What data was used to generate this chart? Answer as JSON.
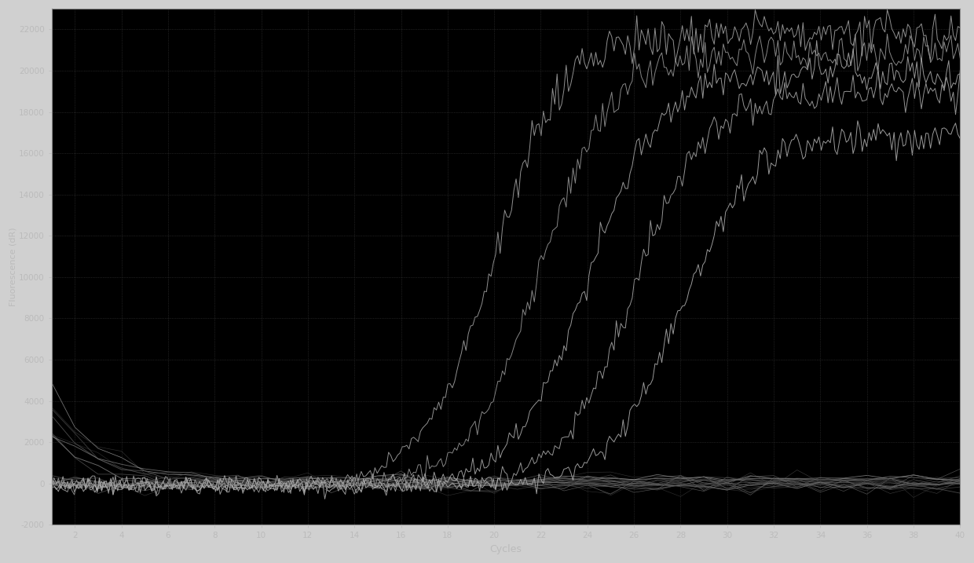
{
  "title": "",
  "xlabel": "Cycles",
  "ylabel": "Fluorescence (dR)",
  "xlim": [
    1,
    40
  ],
  "ylim": [
    -2000,
    23000
  ],
  "xticks": [
    2,
    4,
    6,
    8,
    10,
    12,
    14,
    16,
    18,
    20,
    22,
    24,
    26,
    28,
    30,
    32,
    34,
    36,
    38,
    40
  ],
  "yticks": [
    -2000,
    0,
    2000,
    4000,
    6000,
    8000,
    10000,
    12000,
    14000,
    16000,
    18000,
    20000,
    22000
  ],
  "background_color": "#000000",
  "plot_bg_color": "#000000",
  "grid_color": "#404040",
  "text_color": "#bbbbbb",
  "outer_bg": "#d0d0d0",
  "curve_color": "#aaaaaa",
  "flat_color": "#888888",
  "num_amplify_curves": 5,
  "curve_ct_values": [
    20,
    22,
    24,
    26,
    28
  ],
  "plateau_values": [
    22000,
    21000,
    20000,
    19000,
    17000
  ],
  "num_flat_curves": 20
}
